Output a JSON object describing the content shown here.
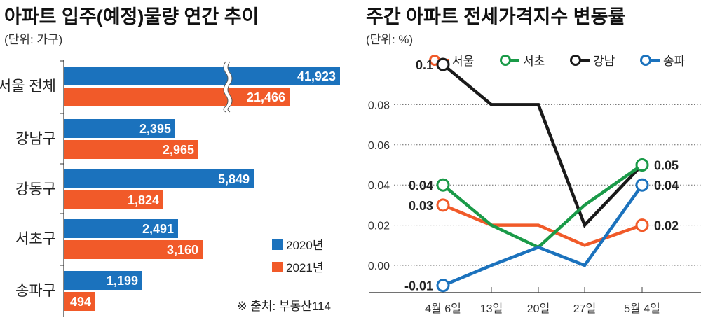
{
  "chart_data": [
    {
      "type": "bar",
      "orientation": "horizontal",
      "title": "아파트 입주(예정)물량 연간 추이",
      "unit": "(단위: 가구)",
      "categories": [
        "서울 전체",
        "강남구",
        "강동구",
        "서초구",
        "송파구"
      ],
      "series": [
        {
          "name": "2020년",
          "color": "#1b72bd",
          "values": [
            41923,
            2395,
            5849,
            2491,
            1199
          ],
          "labels": [
            "41,923",
            "2,395",
            "5,849",
            "2,491",
            "1,199"
          ]
        },
        {
          "name": "2021년",
          "color": "#f15a29",
          "values": [
            21466,
            2965,
            1824,
            3160,
            494
          ],
          "labels": [
            "21,466",
            "2,965",
            "1,824",
            "3,160",
            "494"
          ]
        }
      ],
      "axis_break": "서울 전체",
      "source": "※ 출처: 부동산114"
    },
    {
      "type": "line",
      "title": "주간 아파트 전세가격지수 변동률",
      "unit": "(단위: %)",
      "categories": [
        "4월 6일",
        "13일",
        "20일",
        "27일",
        "5월 4일"
      ],
      "yticks": [
        "0.08",
        "0.06",
        "0.04",
        "0.02",
        "0.00"
      ],
      "ytick_values": [
        0.08,
        0.06,
        0.04,
        0.02,
        0.0
      ],
      "ylim": [
        -0.01,
        0.1
      ],
      "grid": true,
      "legend": "top",
      "series": [
        {
          "name": "서울",
          "color": "#f15a29",
          "values": [
            0.03,
            0.02,
            0.02,
            0.01,
            0.02
          ],
          "start_label": "0.03",
          "end_label": "0.02"
        },
        {
          "name": "서초",
          "color": "#1a9a48",
          "values": [
            0.04,
            0.02,
            0.009,
            0.03,
            0.05
          ],
          "start_label": "0.04",
          "end_label": "0.05"
        },
        {
          "name": "강남",
          "color": "#1a1a1a",
          "values": [
            0.1,
            0.08,
            0.08,
            0.02,
            0.05
          ],
          "start_label": "0.1",
          "end_label": ""
        },
        {
          "name": "송파",
          "color": "#1b72bd",
          "values": [
            -0.01,
            0.0,
            0.009,
            0.0,
            0.04
          ],
          "start_label": "-0.01",
          "end_label": "0.04"
        }
      ]
    }
  ]
}
